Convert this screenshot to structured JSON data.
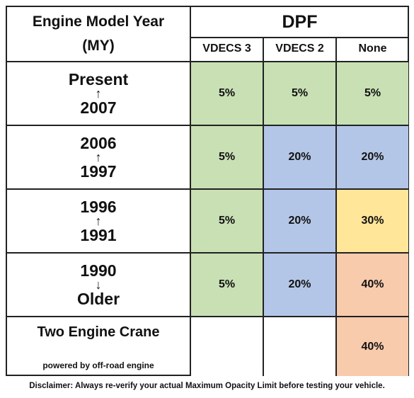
{
  "header": {
    "col1_line1": "Engine Model Year",
    "col1_line2": "(MY)",
    "group": "DPF",
    "subcols": [
      "VDECS 3",
      "VDECS 2",
      "None"
    ]
  },
  "colors": {
    "green": "#c8e0b4",
    "blue": "#b4c6e7",
    "yellow": "#ffe699",
    "orange": "#f8cbad",
    "white": "#ffffff",
    "border": "#222222"
  },
  "rows": [
    {
      "top": "Present",
      "arrow": "↑",
      "bottom": "2007",
      "values": [
        "5%",
        "5%",
        "5%"
      ],
      "fills": [
        "green",
        "green",
        "green"
      ]
    },
    {
      "top": "2006",
      "arrow": "↑",
      "bottom": "1997",
      "values": [
        "5%",
        "20%",
        "20%"
      ],
      "fills": [
        "green",
        "blue",
        "blue"
      ]
    },
    {
      "top": "1996",
      "arrow": "↑",
      "bottom": "1991",
      "values": [
        "5%",
        "20%",
        "30%"
      ],
      "fills": [
        "green",
        "blue",
        "yellow"
      ]
    },
    {
      "top": "1990",
      "arrow": "↓",
      "bottom": "Older",
      "values": [
        "5%",
        "20%",
        "40%"
      ],
      "fills": [
        "green",
        "blue",
        "orange"
      ]
    }
  ],
  "crane": {
    "title": "Two Engine Crane",
    "subtitle": "powered by off-road engine",
    "values": [
      "",
      "",
      "40%"
    ],
    "fills": [
      "white",
      "white",
      "orange"
    ]
  },
  "disclaimer": "Disclaimer: Always re-verify your actual Maximum Opacity Limit before testing your vehicle."
}
